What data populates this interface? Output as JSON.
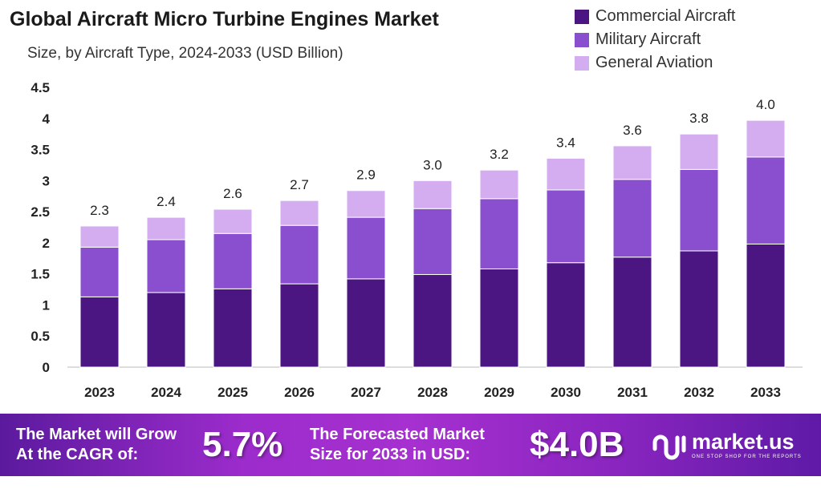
{
  "chart_data": {
    "type": "bar",
    "stacked": true,
    "title": "Global Aircraft Micro Turbine Engines Market",
    "subtitle": "Size, by Aircraft Type, 2024-2033 (USD Billion)",
    "categories": [
      "2023",
      "2024",
      "2025",
      "2026",
      "2027",
      "2028",
      "2029",
      "2030",
      "2031",
      "2032",
      "2033"
    ],
    "series": [
      {
        "name": "Commercial Aircraft",
        "color": "#4b1582",
        "values": [
          1.13,
          1.2,
          1.26,
          1.34,
          1.42,
          1.49,
          1.58,
          1.68,
          1.77,
          1.87,
          1.98
        ]
      },
      {
        "name": "Military Aircraft",
        "color": "#8a4fce",
        "values": [
          0.8,
          0.85,
          0.89,
          0.94,
          0.99,
          1.06,
          1.13,
          1.17,
          1.25,
          1.31,
          1.4
        ]
      },
      {
        "name": "General Aviation",
        "color": "#d3adf0",
        "values": [
          0.34,
          0.36,
          0.39,
          0.4,
          0.43,
          0.45,
          0.46,
          0.51,
          0.54,
          0.57,
          0.59
        ]
      }
    ],
    "totals_labels": [
      "2.3",
      "2.4",
      "2.6",
      "2.7",
      "2.9",
      "3.0",
      "3.2",
      "3.4",
      "3.6",
      "3.8",
      "4.0"
    ],
    "yticks": [
      "0",
      "0.5",
      "1",
      "1.5",
      "2",
      "2.5",
      "3",
      "3.5",
      "4",
      "4.5"
    ],
    "ylim": [
      0,
      4.5
    ],
    "grid": false,
    "legend": "top-right"
  },
  "banner": {
    "cagr_text_1": "The Market will Grow",
    "cagr_text_2": "At the CAGR of:",
    "cagr_value": "5.7%",
    "forecast_text_1": "The Forecasted Market",
    "forecast_text_2": "Size for 2033 in USD:",
    "forecast_value": "$4.0B",
    "logo_name": "market.us",
    "logo_tagline": "ONE STOP SHOP FOR THE REPORTS"
  }
}
